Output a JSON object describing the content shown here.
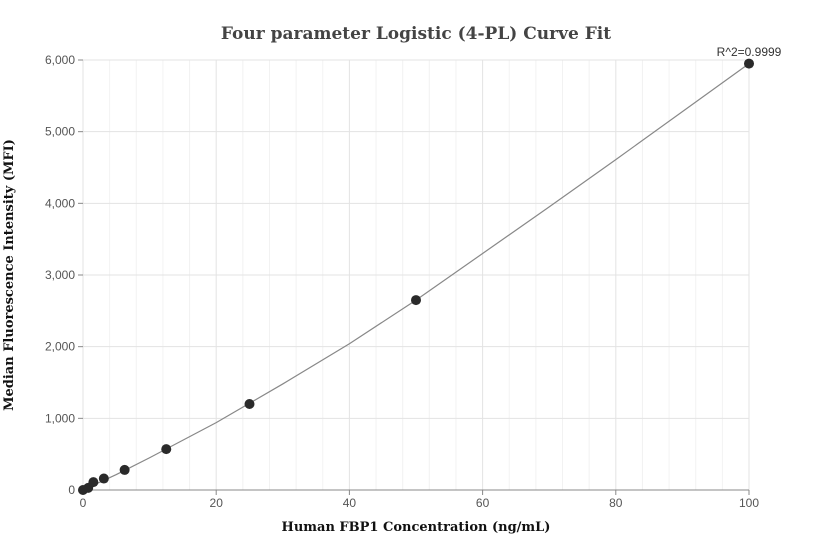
{
  "chart_data": {
    "type": "scatter",
    "title": "Four parameter Logistic (4-PL) Curve Fit",
    "xlabel": "Human FBP1 Concentration (ng/mL)",
    "ylabel": "Median Fluorescence Intensity (MFI)",
    "xlim": [
      0,
      100
    ],
    "ylim": [
      0,
      6000
    ],
    "xticks": [
      0,
      20,
      40,
      60,
      80,
      100
    ],
    "yticks": [
      0,
      1000,
      2000,
      3000,
      4000,
      5000,
      6000
    ],
    "ytick_labels": [
      "0",
      "1,000",
      "2,000",
      "3,000",
      "4,000",
      "5,000",
      "6,000"
    ],
    "grid": true,
    "annotation": "R^2=0.9999",
    "series": [
      {
        "points": [
          {
            "x": 0,
            "y": 0
          },
          {
            "x": 0.78,
            "y": 30
          },
          {
            "x": 1.56,
            "y": 110
          },
          {
            "x": 3.13,
            "y": 160
          },
          {
            "x": 6.25,
            "y": 280
          },
          {
            "x": 12.5,
            "y": 570
          },
          {
            "x": 25,
            "y": 1200
          },
          {
            "x": 50,
            "y": 2650
          },
          {
            "x": 100,
            "y": 5950
          }
        ]
      }
    ],
    "fit_curve": {
      "points": [
        {
          "x": 0,
          "y": 0
        },
        {
          "x": 5,
          "y": 215
        },
        {
          "x": 10,
          "y": 450
        },
        {
          "x": 20,
          "y": 940
        },
        {
          "x": 30,
          "y": 1480
        },
        {
          "x": 40,
          "y": 2040
        },
        {
          "x": 50,
          "y": 2650
        },
        {
          "x": 60,
          "y": 3300
        },
        {
          "x": 70,
          "y": 3950
        },
        {
          "x": 80,
          "y": 4610
        },
        {
          "x": 90,
          "y": 5280
        },
        {
          "x": 100,
          "y": 5950
        }
      ]
    }
  }
}
